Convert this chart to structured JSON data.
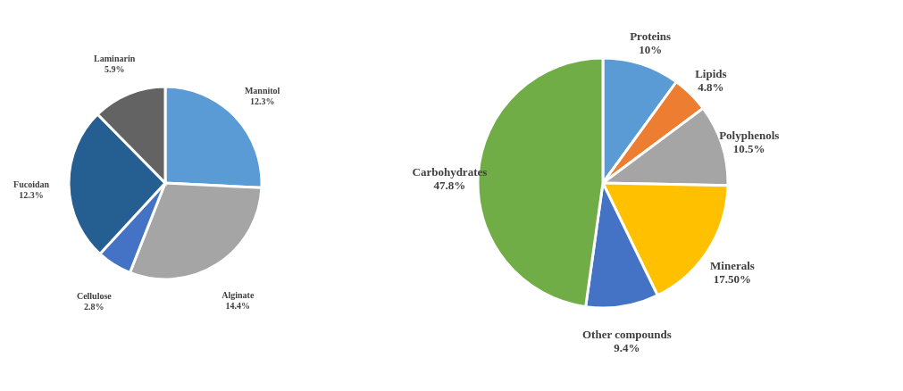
{
  "chart_data": [
    {
      "type": "pie",
      "categories": [
        "Mannitol",
        "Alginate",
        "Cellulose",
        "Fucoidan",
        "Laminarin"
      ],
      "values": [
        12.3,
        14.4,
        2.8,
        12.3,
        5.9
      ],
      "value_labels": [
        "12.3%",
        "14.4%",
        "2.8%",
        "12.3%",
        "5.9%"
      ],
      "colors": [
        "#5b9bd5",
        "#a5a5a5",
        "#4472c4",
        "#255e91",
        "#636363"
      ]
    },
    {
      "type": "pie",
      "categories": [
        "Proteins",
        "Lipids",
        "Polyphenols",
        "Minerals",
        "Other compounds",
        "Carbohydrates"
      ],
      "values": [
        10,
        4.8,
        10.5,
        17.5,
        9.4,
        47.8
      ],
      "value_labels": [
        "10%",
        "4.8%",
        "10.5%",
        "17.50%",
        "9.4%",
        "47.8%"
      ],
      "colors": [
        "#5b9bd5",
        "#ed7d31",
        "#a5a5a5",
        "#ffc000",
        "#4472c4",
        "#70ad47"
      ]
    }
  ]
}
